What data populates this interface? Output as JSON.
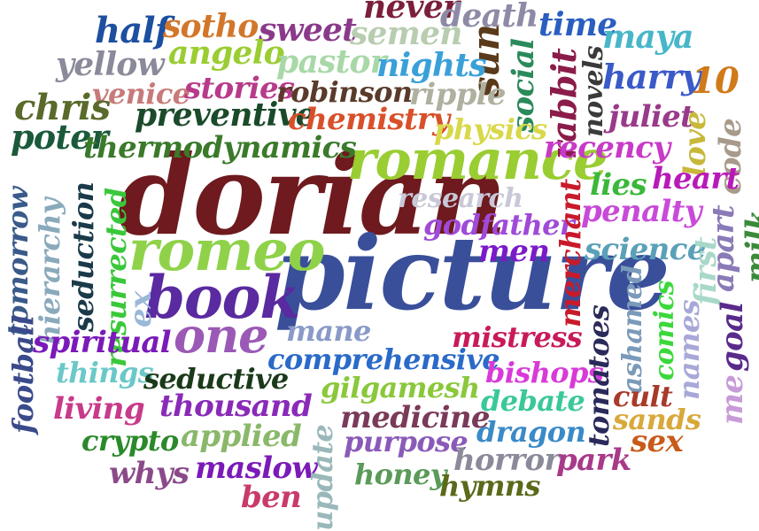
{
  "words": [
    {
      "text": "dorian",
      "color": "#6e1a1e"
    },
    {
      "text": "picture",
      "color": "#3a4f9a"
    },
    {
      "text": "romance",
      "color": "#9acd32"
    },
    {
      "text": "romeo",
      "color": "#8fd24a"
    },
    {
      "text": "book",
      "color": "#5a2aa0"
    },
    {
      "text": "one",
      "color": "#9b59b6"
    },
    {
      "text": "never",
      "color": "#7b1f3a"
    },
    {
      "text": "death",
      "color": "#8e8aa6"
    },
    {
      "text": "time",
      "color": "#2a5fc0"
    },
    {
      "text": "maya",
      "color": "#48b6c9"
    },
    {
      "text": "half",
      "color": "#1c4fa0"
    },
    {
      "text": "sotho",
      "color": "#d2772a"
    },
    {
      "text": "sweet",
      "color": "#8a3a8a"
    },
    {
      "text": "semen",
      "color": "#b8cdb0"
    },
    {
      "text": "sun",
      "color": "#5a3a1a"
    },
    {
      "text": "social",
      "color": "#2a8a5a"
    },
    {
      "text": "rabbit",
      "color": "#8b1c4a"
    },
    {
      "text": "novels",
      "color": "#3a3a3a"
    },
    {
      "text": "harry",
      "color": "#3a5ac8"
    },
    {
      "text": "10",
      "color": "#d07a1a"
    },
    {
      "text": "yellow",
      "color": "#8a8a9a"
    },
    {
      "text": "angelo",
      "color": "#9acd32"
    },
    {
      "text": "pastor",
      "color": "#a8d8a8"
    },
    {
      "text": "nights",
      "color": "#3aa0d8"
    },
    {
      "text": "venice",
      "color": "#c87a7a"
    },
    {
      "text": "stories",
      "color": "#b83a8a"
    },
    {
      "text": "robinson",
      "color": "#5a3a2a"
    },
    {
      "text": "ripple",
      "color": "#b0b0a0"
    },
    {
      "text": "juliet",
      "color": "#9a3a8a"
    },
    {
      "text": "love",
      "color": "#c8b83a"
    },
    {
      "text": "code",
      "color": "#a89a8a"
    },
    {
      "text": "chris",
      "color": "#5a6a2a"
    },
    {
      "text": "preventive",
      "color": "#1a4a2a"
    },
    {
      "text": "chemistry",
      "color": "#d8502a"
    },
    {
      "text": "physics",
      "color": "#d8d84a"
    },
    {
      "text": "recency",
      "color": "#c83ac8"
    },
    {
      "text": "poter",
      "color": "#1a5a3a"
    },
    {
      "text": "thermodynamics",
      "color": "#3a7a2a"
    },
    {
      "text": "heart",
      "color": "#b81ab8"
    },
    {
      "text": "lies",
      "color": "#3ab83a"
    },
    {
      "text": "research",
      "color": "#c8c8d8"
    },
    {
      "text": "penalty",
      "color": "#c84ad8"
    },
    {
      "text": "godfather",
      "color": "#a04ad8"
    },
    {
      "text": "merchant",
      "color": "#c81a2a"
    },
    {
      "text": "men",
      "color": "#7a1ac8"
    },
    {
      "text": "science",
      "color": "#5aa0b8"
    },
    {
      "text": "tomorrow",
      "color": "#3a5a8a"
    },
    {
      "text": "hierarchy",
      "color": "#8aaabc"
    },
    {
      "text": "seduction",
      "color": "#1a3a4a"
    },
    {
      "text": "resurrected",
      "color": "#3ac83a"
    },
    {
      "text": "ex",
      "color": "#9ab8d8"
    },
    {
      "text": "apart",
      "color": "#8a7ab8"
    },
    {
      "text": "milk",
      "color": "#3a8a3a"
    },
    {
      "text": "first",
      "color": "#a8d8c8"
    },
    {
      "text": "ashamed",
      "color": "#7a9aba"
    },
    {
      "text": "comics",
      "color": "#3ad83a"
    },
    {
      "text": "names",
      "color": "#a8a8d8"
    },
    {
      "text": "goal",
      "color": "#5a2a8a"
    },
    {
      "text": "me",
      "color": "#c89ad8"
    },
    {
      "text": "mane",
      "color": "#8a9ac8"
    },
    {
      "text": "mistress",
      "color": "#c81a5a"
    },
    {
      "text": "spiritual",
      "color": "#7a1ab8"
    },
    {
      "text": "football",
      "color": "#3a4a8a"
    },
    {
      "text": "comprehensive",
      "color": "#2a6ac8"
    },
    {
      "text": "bishops",
      "color": "#d83ad8"
    },
    {
      "text": "things",
      "color": "#6ac8c8"
    },
    {
      "text": "seductive",
      "color": "#1a3a1a"
    },
    {
      "text": "gilgamesh",
      "color": "#8ac83a"
    },
    {
      "text": "debate",
      "color": "#3ac89a"
    },
    {
      "text": "cult",
      "color": "#a83a2a"
    },
    {
      "text": "tomatoes",
      "color": "#2a2a5a"
    },
    {
      "text": "living",
      "color": "#c83a8a"
    },
    {
      "text": "thousand",
      "color": "#8a2ab8"
    },
    {
      "text": "medicine",
      "color": "#7a3a5a"
    },
    {
      "text": "sands",
      "color": "#d8a83a"
    },
    {
      "text": "crypto",
      "color": "#2a8a2a"
    },
    {
      "text": "applied",
      "color": "#8ab86a"
    },
    {
      "text": "purpose",
      "color": "#8a5ab8"
    },
    {
      "text": "dragon",
      "color": "#3a8ac8"
    },
    {
      "text": "sex",
      "color": "#c85a1a"
    },
    {
      "text": "whys",
      "color": "#8a4a8a"
    },
    {
      "text": "maslow",
      "color": "#7a1ab8"
    },
    {
      "text": "horror",
      "color": "#8a8a9a"
    },
    {
      "text": "park",
      "color": "#a83a8a"
    },
    {
      "text": "honey",
      "color": "#5a9a5a"
    },
    {
      "text": "hymns",
      "color": "#5a6a1a"
    },
    {
      "text": "ben",
      "color": "#c83a6a"
    },
    {
      "text": "update",
      "color": "#9ab8ba"
    }
  ]
}
